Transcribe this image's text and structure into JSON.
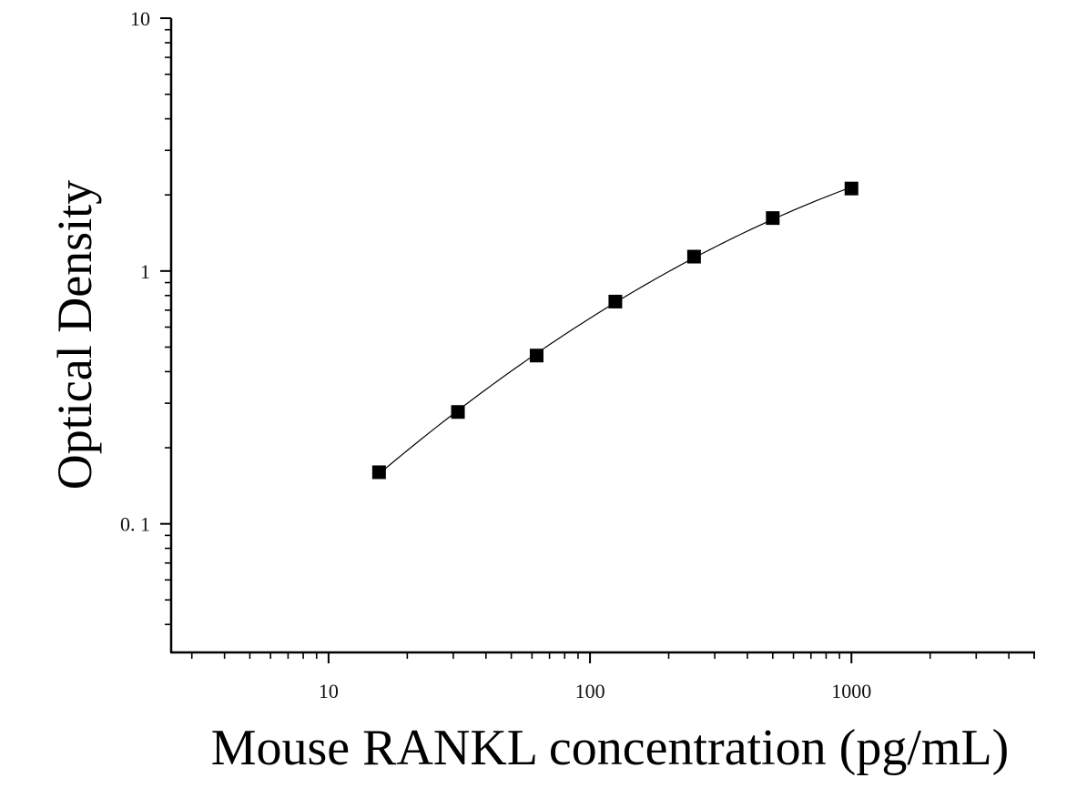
{
  "chart_data": {
    "type": "scatter",
    "title": "",
    "xlabel": "Mouse RANKL concentration (pg/mL)",
    "ylabel": "Optical Density",
    "x_scale": "log",
    "y_scale": "log",
    "xlim": [
      2.5,
      5000
    ],
    "ylim": [
      0.031,
      10
    ],
    "x_tick_labels": [
      "10",
      "100",
      "1000"
    ],
    "y_tick_labels": [
      "0. 1",
      "1",
      "10"
    ],
    "grid": false,
    "series": [
      {
        "x": [
          15.6,
          31.25,
          62.5,
          125,
          250,
          500,
          1000
        ],
        "y": [
          0.16,
          0.277,
          0.463,
          0.757,
          1.14,
          1.62,
          2.12
        ],
        "marker": "square",
        "fit_line": true,
        "color": "#000000"
      }
    ]
  }
}
